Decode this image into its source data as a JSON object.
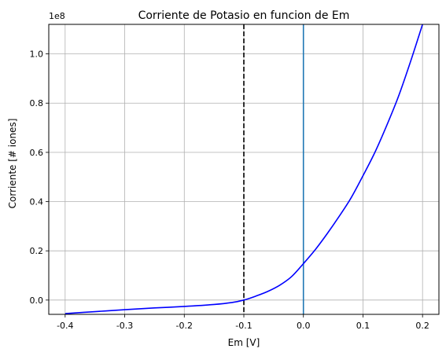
{
  "chart_data": {
    "type": "line",
    "title": "Corriente de Potasio en funcion de Em",
    "xlabel": "Em [V]",
    "ylabel": "Corriente [# iones]",
    "y_offset_label": "1e8",
    "xlim": [
      -0.4275,
      0.2275
    ],
    "ylim": [
      -0.058,
      1.12
    ],
    "x_ticks": [
      -0.4,
      -0.3,
      -0.2,
      -0.1,
      0.0,
      0.1,
      0.2
    ],
    "x_tick_labels": [
      "-0.4",
      "-0.3",
      "-0.2",
      "-0.1",
      "0.0",
      "0.1",
      "0.2"
    ],
    "y_ticks": [
      0.0,
      0.2,
      0.4,
      0.6,
      0.8,
      1.0
    ],
    "y_tick_labels": [
      "0.0",
      "0.2",
      "0.4",
      "0.6",
      "0.8",
      "1.0"
    ],
    "grid": true,
    "series": [
      {
        "color": "#0000ff",
        "x": [
          -0.4,
          -0.35,
          -0.3,
          -0.25,
          -0.2,
          -0.15,
          -0.12,
          -0.1,
          -0.08,
          -0.06,
          -0.04,
          -0.02,
          0.0,
          0.02,
          0.04,
          0.06,
          0.08,
          0.1,
          0.12,
          0.14,
          0.16,
          0.18,
          0.2
        ],
        "y": [
          -0.055,
          -0.047,
          -0.039,
          -0.032,
          -0.026,
          -0.018,
          -0.01,
          0.0,
          0.016,
          0.035,
          0.06,
          0.095,
          0.148,
          0.205,
          0.27,
          0.34,
          0.415,
          0.505,
          0.6,
          0.71,
          0.83,
          0.97,
          1.12
        ]
      }
    ],
    "vertical_lines": [
      {
        "x": -0.1,
        "color": "#000000",
        "style": "dashed"
      },
      {
        "x": 0.0,
        "color": "#1f77b4",
        "style": "solid"
      }
    ]
  }
}
